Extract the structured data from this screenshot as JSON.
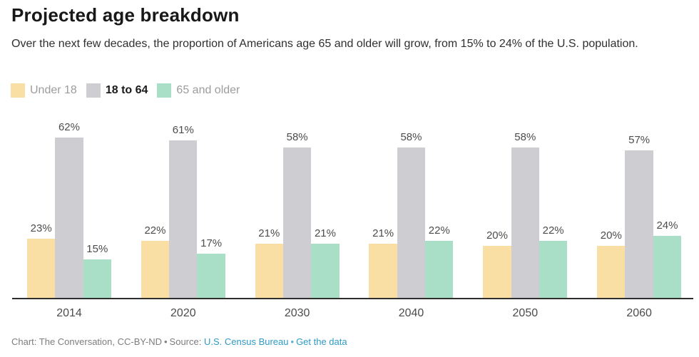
{
  "header": {
    "title": "Projected age breakdown",
    "subtitle": "Over the next few decades, the proportion of Americans age 65 and older will grow, from 15% to 24% of the U.S. population."
  },
  "legend": [
    {
      "label": "Under 18",
      "color": "#f9dfa4",
      "emphasis": false
    },
    {
      "label": "18 to 64",
      "color": "#cecdd2",
      "emphasis": true
    },
    {
      "label": "65 and older",
      "color": "#a9dfc7",
      "emphasis": false
    }
  ],
  "chart_data": {
    "type": "bar",
    "title": "Projected age breakdown",
    "subtitle": "Over the next few decades, the proportion of Americans age 65 and older will grow, from 15% to 24% of the U.S. population.",
    "categories": [
      "2014",
      "2020",
      "2030",
      "2040",
      "2050",
      "2060"
    ],
    "series": [
      {
        "name": "Under 18",
        "color": "#f9dfa4",
        "values": [
          23,
          22,
          21,
          21,
          20,
          20
        ]
      },
      {
        "name": "18 to 64",
        "color": "#cecdd2",
        "values": [
          62,
          61,
          58,
          58,
          58,
          57
        ]
      },
      {
        "name": "65 and older",
        "color": "#a9dfc7",
        "values": [
          15,
          17,
          21,
          22,
          22,
          24
        ]
      }
    ],
    "value_suffix": "%",
    "xlabel": "",
    "ylabel": "",
    "ylim": [
      0,
      70
    ],
    "grid": false,
    "legend_position": "top",
    "data_labels": true,
    "axis_color": "#2e2e2e"
  },
  "footer": {
    "credit": "Chart: The Conversation, CC-BY-ND",
    "separator": "•",
    "source_label": "Source:",
    "source_link": "U.S. Census Bureau",
    "data_link": "Get the data"
  },
  "colors": {
    "accent_link": "#2f9ac5",
    "bar_under18": "#f9dfa4",
    "bar_18to64": "#cecdd2",
    "bar_65plus": "#a9dfc7"
  }
}
